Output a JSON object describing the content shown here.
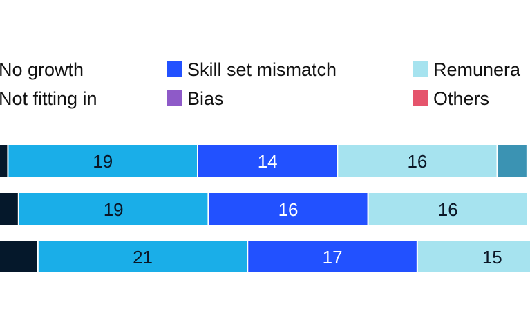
{
  "chart_data": {
    "type": "bar",
    "orientation": "horizontal",
    "stacked": true,
    "cropped": true,
    "legend_placement": "top",
    "grid": false,
    "legend": [
      {
        "name": "No growth",
        "color": "#05182b",
        "marker": false
      },
      {
        "name": "Skill set mismatch",
        "color": "#2251ff",
        "marker": true
      },
      {
        "name": "Remunera",
        "color": "#a6e3ef",
        "marker": true
      },
      {
        "name": "Not fitting in",
        "color": "#1aaee8",
        "marker": false
      },
      {
        "name": "Bias",
        "color": "#8e5ac8",
        "marker": true
      },
      {
        "name": "Others",
        "color": "#e5546c",
        "marker": true
      }
    ],
    "series": [
      {
        "color": "#05182b",
        "values": [
          1,
          2,
          4
        ]
      },
      {
        "color": "#1aaee8",
        "values": [
          19,
          19,
          21
        ]
      },
      {
        "color": "#2251ff",
        "values": [
          14,
          16,
          17
        ]
      },
      {
        "color": "#a6e3ef",
        "values": [
          16,
          16,
          15
        ]
      },
      {
        "color": "#3b93b3",
        "values": [
          3,
          0,
          0
        ]
      }
    ],
    "data_labels": [
      [
        "",
        "19",
        "14",
        "16",
        ""
      ],
      [
        "",
        "19",
        "16",
        "16",
        ""
      ],
      [
        "",
        "21",
        "17",
        "15",
        ""
      ]
    ]
  }
}
